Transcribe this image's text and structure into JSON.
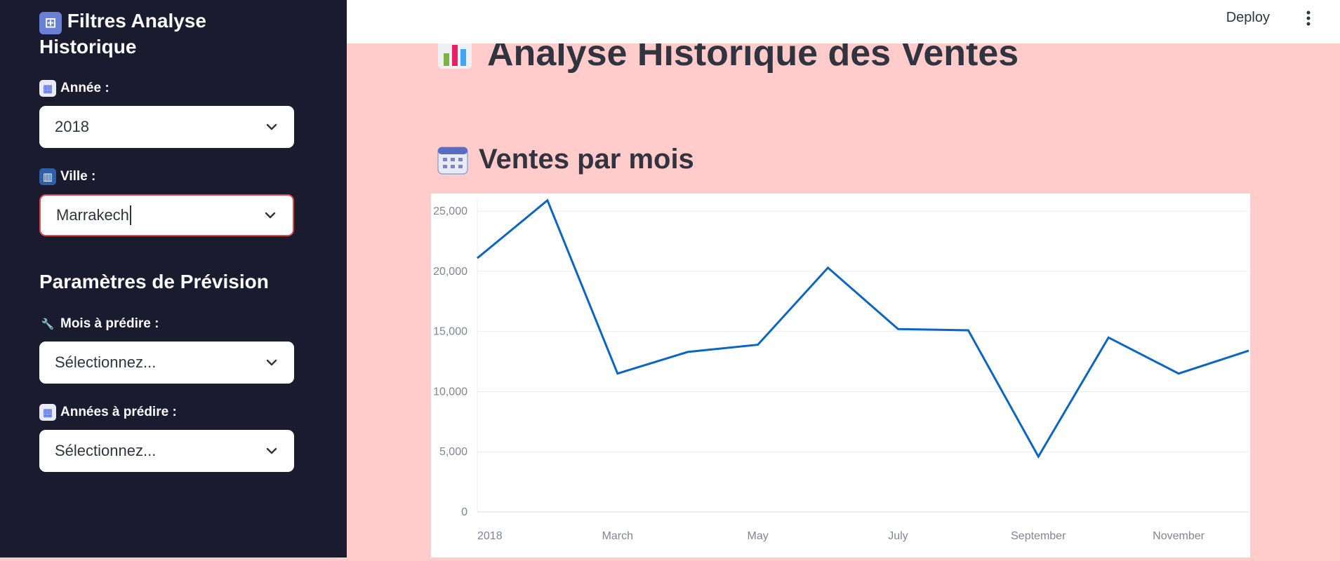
{
  "colors": {
    "sidebar_bg": "#1b1b2f",
    "main_bg": "#ffcbcb",
    "focus_border": "#e0474c",
    "line": "#0a66c2"
  },
  "sidebar": {
    "title": "Filtres Analyse Historique",
    "title_icon": "control-knobs-icon",
    "fields": [
      {
        "label": "Année :",
        "icon": "calendar-icon",
        "value": "2018"
      },
      {
        "label": "Ville :",
        "icon": "city-icon",
        "value": "Marrakech"
      }
    ],
    "section_title": "Paramètres de Prévision",
    "forecast_fields": [
      {
        "label": "Mois à prédire :",
        "icon": "wrench-icon",
        "placeholder": "Sélectionnez..."
      },
      {
        "label": "Années à prédire :",
        "icon": "calendar-icon",
        "placeholder": "Sélectionnez..."
      }
    ]
  },
  "header": {
    "deploy_label": "Deploy",
    "menu_icon": "kebab-menu-icon"
  },
  "main": {
    "title": "Analyse Historique des Ventes",
    "title_icon": "bar-chart-icon",
    "section_title": "Ventes par mois",
    "section_icon": "calendar-icon"
  },
  "chart_data": {
    "type": "line",
    "x": [
      "2018-01",
      "2018-02",
      "2018-03",
      "2018-04",
      "2018-05",
      "2018-06",
      "2018-07",
      "2018-08",
      "2018-09",
      "2018-10",
      "2018-11",
      "2018-12"
    ],
    "x_tick_labels": [
      "2018",
      "March",
      "May",
      "July",
      "September",
      "November"
    ],
    "series": [
      {
        "values": [
          21100,
          25900,
          11500,
          13300,
          13900,
          20300,
          15200,
          15100,
          4600,
          14500,
          11500,
          13400
        ]
      }
    ],
    "y_ticks": [
      "0",
      "5,000",
      "10,000",
      "15,000",
      "20,000",
      "25,000"
    ],
    "ylim": [
      0,
      26000
    ],
    "grid": true
  }
}
